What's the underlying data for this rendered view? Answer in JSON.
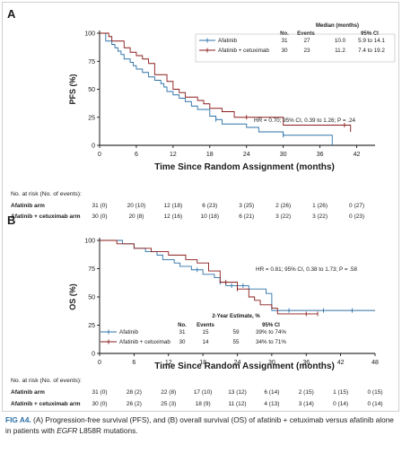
{
  "chart_data": [
    {
      "type": "line",
      "panel": "A",
      "xlabel": "Time Since Random Assignment (months)",
      "ylabel": "PFS (%)",
      "xlim": [
        0,
        45
      ],
      "ylim": [
        0,
        100
      ],
      "xticks": [
        0,
        6,
        12,
        18,
        24,
        30,
        36,
        42
      ],
      "yticks": [
        0,
        25,
        50,
        75,
        100
      ],
      "grid": false,
      "legend_position": "top-right",
      "table_headers": [
        "No.",
        "Events",
        "Median (months)",
        "95% CI"
      ],
      "series": [
        {
          "name": "Afatinib",
          "color": "#2d72a8",
          "no": "31",
          "events": "27",
          "median": "10.0",
          "ci": "5.9 to 14.1",
          "x": [
            0,
            1,
            2,
            2.5,
            3,
            3.5,
            4,
            5,
            5.5,
            6,
            7,
            8,
            9,
            10,
            10.5,
            11,
            12,
            13,
            14,
            15,
            16,
            18,
            19,
            20,
            24,
            26,
            30,
            34,
            38
          ],
          "y": [
            100,
            93,
            90,
            87,
            84,
            81,
            77,
            74,
            71,
            68,
            65,
            61,
            58,
            55,
            52,
            48,
            45,
            42,
            39,
            35,
            32,
            26,
            23,
            19,
            16,
            12,
            9,
            9,
            0
          ],
          "censor_x": [
            19,
            30
          ]
        },
        {
          "name": "Afatinib + cetuximab",
          "color": "#8b1a1a",
          "no": "30",
          "events": "23",
          "median": "11.2",
          "ci": "7.4 to 19.2",
          "x": [
            0,
            1.5,
            2,
            4,
            5,
            6,
            7,
            8,
            9,
            11,
            12,
            13,
            14,
            16,
            17,
            18,
            20,
            22,
            26,
            30,
            40,
            41
          ],
          "y": [
            100,
            97,
            93,
            87,
            83,
            80,
            77,
            73,
            63,
            57,
            50,
            47,
            43,
            40,
            37,
            33,
            30,
            25,
            25,
            18,
            18,
            12
          ],
          "censor_x": [
            24,
            40
          ]
        }
      ],
      "annotation": "HR = 0.70; 95% CI, 0.39 to 1.26; P = .24",
      "risk_table": {
        "title": "No. at risk (No. of events):",
        "rows": [
          {
            "label": "Afatinib arm",
            "values": [
              "31 (0)",
              "20 (10)",
              "12 (18)",
              "6 (23)",
              "3 (25)",
              "2 (26)",
              "1 (26)",
              "0 (27)"
            ]
          },
          {
            "label": "Afatinib + cetuximab arm",
            "values": [
              "30 (0)",
              "20 (8)",
              "12 (16)",
              "10 (18)",
              "6 (21)",
              "3 (22)",
              "3 (22)",
              "0 (23)"
            ]
          }
        ]
      }
    },
    {
      "type": "line",
      "panel": "B",
      "xlabel": "Time Since Random Assignment (months)",
      "ylabel": "OS (%)",
      "xlim": [
        0,
        48
      ],
      "ylim": [
        0,
        100
      ],
      "xticks": [
        0,
        6,
        12,
        18,
        24,
        30,
        36,
        42,
        48
      ],
      "yticks": [
        0,
        25,
        50,
        75,
        100
      ],
      "grid": false,
      "legend_position": "bottom-center",
      "table_headers": [
        "No.",
        "Events",
        "2-Year Estimate, %",
        "95% CI"
      ],
      "series": [
        {
          "name": "Afatinib",
          "color": "#2d72a8",
          "no": "31",
          "events": "15",
          "estimate": "59",
          "ci": "39% to 74%",
          "x": [
            0,
            4,
            6,
            8,
            10,
            11,
            13,
            14,
            16,
            18,
            20,
            21,
            22,
            26,
            29,
            30,
            48
          ],
          "y": [
            100,
            97,
            93,
            90,
            87,
            83,
            80,
            77,
            74,
            70,
            67,
            63,
            60,
            57,
            53,
            38,
            38
          ],
          "censor_x": [
            17,
            21,
            23,
            25,
            33,
            39,
            44
          ]
        },
        {
          "name": "Afatinib + cetuximab",
          "color": "#8b1a1a",
          "no": "30",
          "events": "14",
          "estimate": "55",
          "ci": "34% to 71%",
          "x": [
            0,
            3,
            6,
            9,
            12,
            15,
            17,
            19,
            21,
            24,
            26,
            27,
            28,
            30,
            31,
            38
          ],
          "y": [
            100,
            97,
            93,
            90,
            87,
            83,
            80,
            73,
            63,
            57,
            50,
            47,
            43,
            40,
            35,
            35
          ],
          "censor_x": [
            22,
            24,
            36,
            38
          ]
        }
      ],
      "annotation": "HR = 0.81; 95% CI, 0.38 to 1.73; P = .58",
      "risk_table": {
        "title": "No. at risk (No. of events):",
        "rows": [
          {
            "label": "Afatinib arm",
            "values": [
              "31 (0)",
              "28 (2)",
              "22 (8)",
              "17 (10)",
              "13 (12)",
              "6 (14)",
              "2 (15)",
              "1 (15)",
              "0 (15)"
            ]
          },
          {
            "label": "Afatinib + cetuximab arm",
            "values": [
              "30 (0)",
              "26 (2)",
              "25 (3)",
              "18 (9)",
              "11 (12)",
              "4 (13)",
              "3 (14)",
              "0 (14)",
              "0 (14)"
            ]
          }
        ]
      }
    }
  ],
  "caption": {
    "label": "FIG A4.",
    "part1": " (A) Progression-free survival (PFS), and (B) overall survival (OS) of afatinib + cetuximab versus afatinib alone in patients with ",
    "gene": "EGFR",
    "part2": " L858R mutations."
  }
}
